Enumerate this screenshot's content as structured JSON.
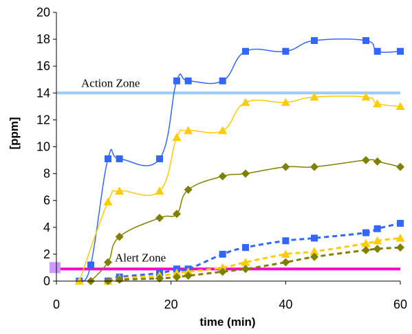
{
  "chart_data": {
    "type": "line",
    "title": "",
    "xlabel": "time (min)",
    "ylabel": "[ppm]",
    "xlim": [
      0,
      60
    ],
    "ylim": [
      0,
      20
    ],
    "xticks": [
      0,
      20,
      40,
      60
    ],
    "yticks": [
      0,
      2,
      4,
      6,
      8,
      10,
      12,
      14,
      16,
      18,
      20
    ],
    "grid": false,
    "legend": "none",
    "reference_lines": [
      {
        "label": "Action Zone",
        "y": 14,
        "color": "#99ccff"
      },
      {
        "label": "Alert Zone",
        "y": 0.9,
        "color": "#ff00cc"
      }
    ],
    "series": [
      {
        "marker": "square",
        "style": "solid",
        "color": "#3366ff",
        "x": [
          4,
          6,
          9,
          11,
          18,
          21,
          23,
          29,
          33,
          40,
          45,
          54,
          56,
          60
        ],
        "y": [
          0,
          1.2,
          9.1,
          9.1,
          9.1,
          14.9,
          14.9,
          14.9,
          17.1,
          17.1,
          17.9,
          17.9,
          17.1,
          17.1
        ]
      },
      {
        "marker": "triangle",
        "style": "solid",
        "color": "#ffcc00",
        "x": [
          4,
          9,
          11,
          18,
          21,
          23,
          29,
          33,
          40,
          45,
          54,
          56,
          60
        ],
        "y": [
          0,
          5.9,
          6.7,
          6.7,
          10.7,
          11.2,
          11.2,
          13.3,
          13.3,
          13.7,
          13.7,
          13.2,
          13.0
        ]
      },
      {
        "marker": "diamond",
        "style": "solid",
        "color": "#808000",
        "x": [
          6,
          9,
          11,
          18,
          21,
          23,
          29,
          33,
          40,
          45,
          54,
          56,
          60
        ],
        "y": [
          0,
          1.4,
          3.3,
          4.7,
          5.0,
          6.8,
          7.8,
          8.0,
          8.5,
          8.5,
          9.0,
          8.9,
          8.5
        ]
      },
      {
        "marker": "square",
        "style": "dashed",
        "color": "#3366ff",
        "x": [
          9,
          11,
          18,
          21,
          23,
          29,
          33,
          40,
          45,
          54,
          56,
          60
        ],
        "y": [
          0,
          0.3,
          0.6,
          0.9,
          0.9,
          2.0,
          2.5,
          3.0,
          3.2,
          3.6,
          3.9,
          4.3
        ]
      },
      {
        "marker": "triangle",
        "style": "dashed",
        "color": "#ffcc00",
        "x": [
          9,
          11,
          18,
          21,
          23,
          29,
          33,
          40,
          45,
          54,
          56,
          60
        ],
        "y": [
          0,
          0.2,
          0.4,
          0.6,
          0.7,
          1.0,
          1.4,
          2.0,
          2.2,
          2.8,
          3.0,
          3.2
        ]
      },
      {
        "marker": "diamond",
        "style": "dashed",
        "color": "#808000",
        "x": [
          9,
          11,
          18,
          21,
          23,
          29,
          33,
          40,
          45,
          54,
          56,
          60
        ],
        "y": [
          0,
          0.1,
          0.2,
          0.3,
          0.4,
          0.7,
          0.9,
          1.4,
          1.8,
          2.3,
          2.4,
          2.5
        ]
      }
    ]
  }
}
